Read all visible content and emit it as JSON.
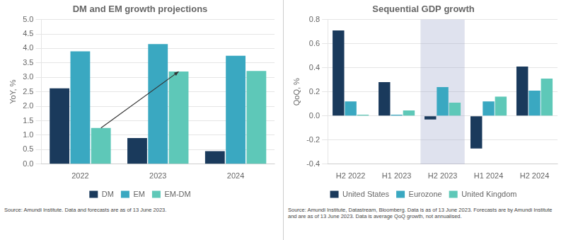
{
  "chart_data": [
    {
      "type": "bar",
      "title": "DM and EM growth projections",
      "y_label": "YoY, %",
      "categories": [
        "2022",
        "2023",
        "2024"
      ],
      "series": [
        {
          "name": "DM",
          "color": "#1a3a5c",
          "values": [
            2.62,
            0.9,
            0.45
          ]
        },
        {
          "name": "EM",
          "color": "#3aa8c1",
          "values": [
            3.9,
            4.15,
            3.75
          ]
        },
        {
          "name": "EM-DM",
          "color": "#5ec8b8",
          "values": [
            1.25,
            3.2,
            3.22
          ]
        }
      ],
      "ylim": [
        0.0,
        5.0
      ],
      "yticks": [
        {
          "value": 0,
          "label": "0.0"
        },
        0.5,
        {
          "value": 1,
          "label": "1.0"
        },
        1.5,
        {
          "value": 2,
          "label": "2.0"
        },
        2.5,
        {
          "value": 3,
          "label": "3.0"
        },
        3.5,
        {
          "value": 4,
          "label": "4.0"
        },
        4.5,
        {
          "value": 5,
          "label": "5.0"
        }
      ],
      "grid": true,
      "legend": "bottom",
      "annotations": [
        {
          "type": "arrow",
          "series": "EM-DM",
          "from": "2022",
          "to": "2023"
        }
      ],
      "source": [
        "Source: Amundi Institute. Data and forecasts are as of 13 June 2023."
      ]
    },
    {
      "type": "bar",
      "title": "Sequential GDP growth",
      "y_label": "QoQ, %",
      "categories": [
        "H2 2022",
        "H1 2023",
        "H2 2023",
        "H1 2024",
        "H2 2024"
      ],
      "series": [
        {
          "name": "United States",
          "color": "#1a3a5c",
          "values": [
            0.71,
            0.28,
            -0.03,
            -0.27,
            0.41
          ]
        },
        {
          "name": "Eurozone",
          "color": "#3aa8c1",
          "values": [
            0.12,
            0.01,
            0.24,
            0.12,
            0.21
          ]
        },
        {
          "name": "United Kingdom",
          "color": "#5ec8b8",
          "values": [
            0.01,
            0.045,
            0.11,
            0.16,
            0.31
          ]
        }
      ],
      "ylim": [
        -0.4,
        0.8
      ],
      "yticks": [
        -0.4,
        -0.2,
        {
          "value": 0,
          "label": "0.0"
        },
        0.2,
        0.4,
        0.6,
        0.8
      ],
      "grid": true,
      "legend": "bottom",
      "annotations": [
        {
          "type": "span",
          "category": "H2 2023"
        }
      ],
      "source": [
        "Source: Amundi Institute, Datastream, Bloomberg. Data is as of 13 June 2023. Forecasts are by",
        "Amundi Institute and are as of 13 June 2023. Data is average QoQ growth, not annualised."
      ]
    }
  ]
}
